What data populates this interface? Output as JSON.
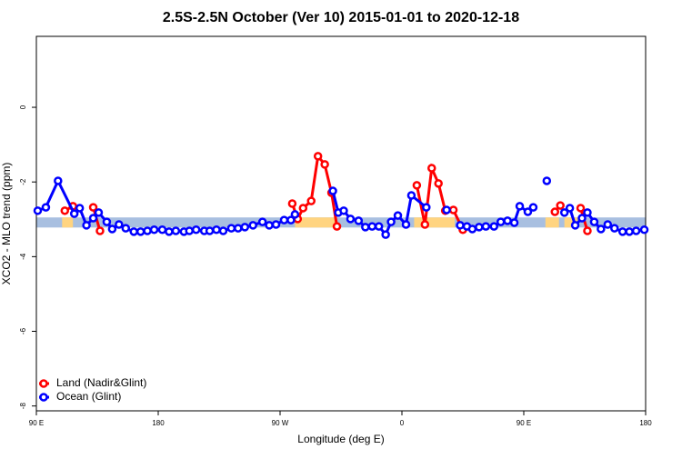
{
  "chart_data": {
    "type": "line",
    "title": "2.5S-2.5N October (Ver 10)   2015-01-01 to 2020-12-18",
    "x_label": "Longitude (deg E)",
    "y_label": "XCO2 - MLO trend (ppm)",
    "xlim": [
      90,
      540
    ],
    "ylim": [
      -8.13,
      1.9
    ],
    "xticks": [
      {
        "value": 90,
        "label": "90 E"
      },
      180,
      {
        "value": 270,
        "label": "90 W"
      },
      {
        "value": 360,
        "label": "0"
      },
      {
        "value": 450,
        "label": "90 E"
      },
      {
        "value": 540,
        "label": "180"
      }
    ],
    "yticks": [
      0,
      -2,
      -4,
      -6,
      -8
    ],
    "legend": "bottom-left",
    "band": {
      "values": [
        -2.95,
        -3.22
      ],
      "color": "#a8bfe0",
      "land_color": "#ffd480",
      "land_spans": [
        [
          109,
          117
        ],
        [
          281,
          312
        ],
        [
          369,
          399
        ],
        [
          466,
          476
        ],
        [
          480,
          490
        ]
      ]
    },
    "series": [
      {
        "name": "Land (Nadir&Glint)",
        "color": "#ff0000",
        "x": [
          111,
          117,
          null,
          132,
          137,
          null,
          279,
          283,
          287,
          293,
          298,
          303,
          308,
          312,
          null,
          371,
          377,
          382,
          387,
          392,
          398,
          405,
          null,
          473,
          477,
          null,
          492,
          497
        ],
        "values": [
          -2.77,
          -2.65,
          null,
          -2.68,
          -3.31,
          null,
          -2.58,
          -2.99,
          -2.7,
          -2.51,
          -1.31,
          -1.53,
          -2.29,
          -3.19,
          null,
          -2.09,
          -3.14,
          -1.63,
          -2.04,
          -2.77,
          -2.75,
          -3.28,
          null,
          -2.8,
          -2.63,
          null,
          -2.7,
          -3.31
        ]
      },
      {
        "name": "Ocean (Glint)",
        "color": "#0000ff",
        "x": [
          91,
          97,
          106,
          118,
          122,
          127,
          132,
          136,
          142,
          146,
          151,
          156,
          162,
          167,
          172,
          177,
          183,
          188,
          193,
          199,
          203,
          208,
          214,
          218,
          223,
          228,
          234,
          239,
          244,
          250,
          257,
          262,
          267,
          273,
          278,
          281,
          null,
          309,
          313,
          317,
          322,
          328,
          333,
          338,
          343,
          348,
          352,
          357,
          363,
          367,
          378,
          null,
          393,
          null,
          403,
          408,
          412,
          417,
          422,
          428,
          433,
          438,
          443,
          447,
          453,
          457,
          null,
          467,
          null,
          480,
          484,
          488,
          493,
          497,
          502,
          507,
          512,
          517,
          523,
          528,
          533,
          539
        ],
        "values": [
          -2.77,
          -2.68,
          -1.97,
          -2.85,
          -2.7,
          -3.16,
          -2.97,
          -2.82,
          -3.07,
          -3.26,
          -3.14,
          -3.24,
          -3.33,
          -3.33,
          -3.31,
          -3.28,
          -3.28,
          -3.33,
          -3.31,
          -3.33,
          -3.31,
          -3.28,
          -3.31,
          -3.31,
          -3.28,
          -3.31,
          -3.24,
          -3.24,
          -3.21,
          -3.16,
          -3.07,
          -3.16,
          -3.14,
          -3.02,
          -3.02,
          -2.87,
          null,
          -2.24,
          -2.82,
          -2.77,
          -2.99,
          -3.04,
          -3.21,
          -3.19,
          -3.19,
          -3.41,
          -3.07,
          -2.9,
          -3.14,
          -2.36,
          -2.68,
          null,
          -2.75,
          null,
          -3.16,
          -3.19,
          -3.26,
          -3.21,
          -3.19,
          -3.19,
          -3.07,
          -3.04,
          -3.09,
          -2.65,
          -2.8,
          -2.68,
          null,
          -1.97,
          null,
          -2.82,
          -2.7,
          -3.16,
          -2.97,
          -2.82,
          -3.07,
          -3.26,
          -3.14,
          -3.24,
          -3.33,
          -3.33,
          -3.31,
          -3.28
        ]
      }
    ]
  }
}
